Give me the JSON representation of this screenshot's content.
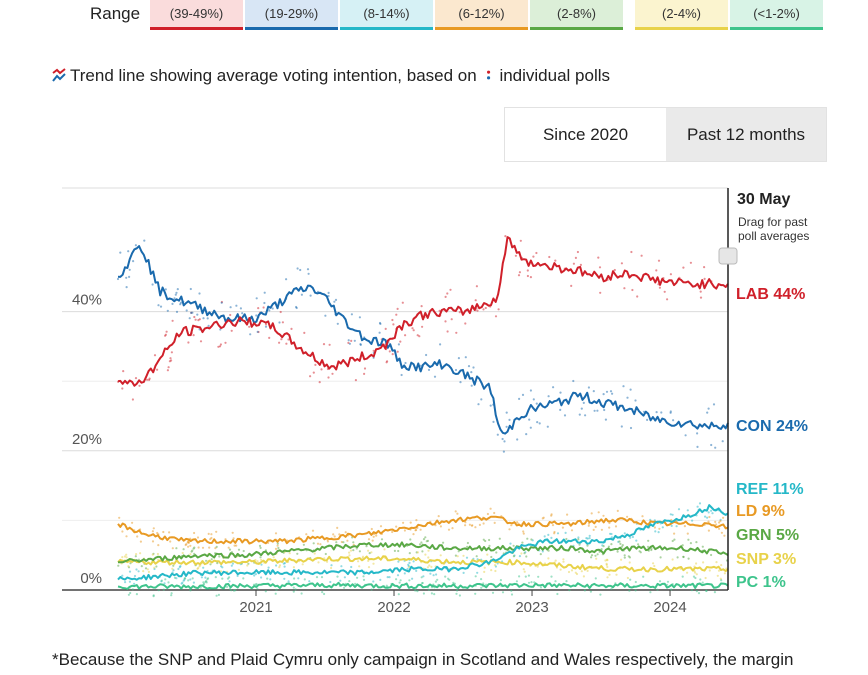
{
  "range_row": {
    "label": "Range",
    "cells": [
      {
        "text": "(39-49%)",
        "bg": "#fadcdc",
        "line": "#d0202a"
      },
      {
        "text": "(19-29%)",
        "bg": "#d8e6f5",
        "line": "#1a6aad"
      },
      {
        "text": "(8-14%)",
        "bg": "#d6f1f5",
        "line": "#25b8c8"
      },
      {
        "text": "(6-12%)",
        "bg": "#fbe8cf",
        "line": "#e89a24"
      },
      {
        "text": "(2-8%)",
        "bg": "#dcefd8",
        "line": "#5aa845"
      },
      {
        "text": "(2-4%)",
        "bg": "#fbf4cf",
        "line": "#e8d24a"
      },
      {
        "text": "(<1-2%)",
        "bg": "#d8f3e6",
        "line": "#3ec48c"
      }
    ]
  },
  "legend": {
    "text_before": "Trend line showing average voting intention, based on",
    "text_after": "individual polls",
    "trend_icon": "trend-line-icon",
    "poll_icon": "poll-dots-icon"
  },
  "toggle": {
    "since_label": "Since 2020",
    "past_label": "Past 12 months",
    "active": "past"
  },
  "chart_data": {
    "type": "line",
    "title": "Trend line showing average voting intention",
    "xlabel": "",
    "ylabel": "",
    "x_ticks": [
      2021,
      2022,
      2023,
      2024
    ],
    "x_range": [
      2020.0,
      2024.42
    ],
    "ylim": [
      0,
      50
    ],
    "y_ticks": [
      {
        "value": 0,
        "label": "0%"
      },
      {
        "value": 20,
        "label": "20%"
      },
      {
        "value": 40,
        "label": "40%"
      }
    ],
    "date_label": "30 May",
    "drag_hint": "Drag for past poll averages",
    "series": [
      {
        "name": "LAB",
        "label": "LAB 44%",
        "color": "#d0202a",
        "points": [
          [
            2020.0,
            30
          ],
          [
            2020.1,
            29.5
          ],
          [
            2020.2,
            30.5
          ],
          [
            2020.3,
            33
          ],
          [
            2020.45,
            37
          ],
          [
            2020.6,
            37.5
          ],
          [
            2020.8,
            38.5
          ],
          [
            2021.0,
            38.5
          ],
          [
            2021.15,
            37.5
          ],
          [
            2021.3,
            35
          ],
          [
            2021.45,
            33
          ],
          [
            2021.55,
            32
          ],
          [
            2021.7,
            33
          ],
          [
            2021.85,
            34
          ],
          [
            2021.95,
            35.5
          ],
          [
            2022.05,
            38
          ],
          [
            2022.2,
            39.5
          ],
          [
            2022.35,
            40
          ],
          [
            2022.5,
            40
          ],
          [
            2022.65,
            41
          ],
          [
            2022.75,
            42
          ],
          [
            2022.8,
            48
          ],
          [
            2022.83,
            51
          ],
          [
            2022.9,
            48
          ],
          [
            2023.0,
            47
          ],
          [
            2023.15,
            46.5
          ],
          [
            2023.3,
            46
          ],
          [
            2023.5,
            45
          ],
          [
            2023.7,
            45.5
          ],
          [
            2023.9,
            44.5
          ],
          [
            2024.1,
            44
          ],
          [
            2024.3,
            44
          ],
          [
            2024.42,
            44
          ]
        ]
      },
      {
        "name": "CON",
        "label": "CON 24%",
        "color": "#1a6aad",
        "points": [
          [
            2020.0,
            45
          ],
          [
            2020.08,
            47
          ],
          [
            2020.15,
            50
          ],
          [
            2020.2,
            48
          ],
          [
            2020.3,
            43
          ],
          [
            2020.4,
            42
          ],
          [
            2020.6,
            40.5
          ],
          [
            2020.8,
            39
          ],
          [
            2021.0,
            39
          ],
          [
            2021.15,
            41
          ],
          [
            2021.3,
            43
          ],
          [
            2021.4,
            43.5
          ],
          [
            2021.5,
            42
          ],
          [
            2021.65,
            38.5
          ],
          [
            2021.8,
            36
          ],
          [
            2021.95,
            35.5
          ],
          [
            2022.05,
            32.5
          ],
          [
            2022.2,
            32
          ],
          [
            2022.35,
            32.5
          ],
          [
            2022.5,
            31
          ],
          [
            2022.6,
            30
          ],
          [
            2022.7,
            29
          ],
          [
            2022.75,
            24
          ],
          [
            2022.8,
            22
          ],
          [
            2022.9,
            25
          ],
          [
            2023.0,
            26
          ],
          [
            2023.2,
            27
          ],
          [
            2023.35,
            28
          ],
          [
            2023.5,
            27
          ],
          [
            2023.7,
            26
          ],
          [
            2023.9,
            24.5
          ],
          [
            2024.1,
            24
          ],
          [
            2024.3,
            23.5
          ],
          [
            2024.42,
            24
          ]
        ]
      },
      {
        "name": "REF",
        "label": "REF 11%",
        "color": "#25b8c8",
        "points": [
          [
            2020.0,
            1.5
          ],
          [
            2020.3,
            2
          ],
          [
            2020.6,
            2.5
          ],
          [
            2020.9,
            2.5
          ],
          [
            2021.2,
            2.5
          ],
          [
            2021.5,
            2.5
          ],
          [
            2021.8,
            2.5
          ],
          [
            2022.1,
            3
          ],
          [
            2022.4,
            3
          ],
          [
            2022.7,
            4
          ],
          [
            2022.9,
            6
          ],
          [
            2023.1,
            7
          ],
          [
            2023.3,
            7
          ],
          [
            2023.5,
            7
          ],
          [
            2023.7,
            8
          ],
          [
            2023.9,
            9.5
          ],
          [
            2024.1,
            10.5
          ],
          [
            2024.3,
            12
          ],
          [
            2024.42,
            11
          ]
        ]
      },
      {
        "name": "LD",
        "label": "LD 9%",
        "color": "#e89a24",
        "points": [
          [
            2020.0,
            9.5
          ],
          [
            2020.2,
            8
          ],
          [
            2020.5,
            7
          ],
          [
            2020.9,
            7
          ],
          [
            2021.2,
            7
          ],
          [
            2021.5,
            7.5
          ],
          [
            2021.8,
            8
          ],
          [
            2022.1,
            9
          ],
          [
            2022.4,
            10
          ],
          [
            2022.7,
            10.5
          ],
          [
            2022.9,
            9.5
          ],
          [
            2023.1,
            9.5
          ],
          [
            2023.3,
            9.5
          ],
          [
            2023.5,
            10
          ],
          [
            2023.7,
            10
          ],
          [
            2023.9,
            9.5
          ],
          [
            2024.1,
            9.5
          ],
          [
            2024.3,
            9.5
          ],
          [
            2024.42,
            9
          ]
        ]
      },
      {
        "name": "GRN",
        "label": "GRN 5%",
        "color": "#5aa845",
        "points": [
          [
            2020.0,
            4
          ],
          [
            2020.3,
            4.5
          ],
          [
            2020.6,
            5
          ],
          [
            2020.9,
            5
          ],
          [
            2021.2,
            5.5
          ],
          [
            2021.5,
            6
          ],
          [
            2021.8,
            6.5
          ],
          [
            2022.1,
            6.5
          ],
          [
            2022.4,
            6
          ],
          [
            2022.7,
            6
          ],
          [
            2022.9,
            6
          ],
          [
            2023.1,
            6
          ],
          [
            2023.3,
            6
          ],
          [
            2023.5,
            5.5
          ],
          [
            2023.7,
            6
          ],
          [
            2023.9,
            6
          ],
          [
            2024.1,
            6
          ],
          [
            2024.3,
            5.5
          ],
          [
            2024.42,
            5
          ]
        ]
      },
      {
        "name": "SNP",
        "label": "SNP 3%",
        "color": "#e8d24a",
        "points": [
          [
            2020.0,
            4
          ],
          [
            2020.5,
            4
          ],
          [
            2021.0,
            4
          ],
          [
            2021.5,
            4.5
          ],
          [
            2022.0,
            4.5
          ],
          [
            2022.5,
            4
          ],
          [
            2022.9,
            4
          ],
          [
            2023.2,
            3.5
          ],
          [
            2023.6,
            3
          ],
          [
            2024.0,
            3
          ],
          [
            2024.42,
            3
          ]
        ]
      },
      {
        "name": "PC",
        "label": "PC 1%",
        "color": "#3ec48c",
        "points": [
          [
            2020.0,
            0.5
          ],
          [
            2020.5,
            0.5
          ],
          [
            2021.0,
            0.6
          ],
          [
            2021.5,
            0.7
          ],
          [
            2022.0,
            0.6
          ],
          [
            2022.5,
            0.6
          ],
          [
            2023.0,
            0.7
          ],
          [
            2023.5,
            0.6
          ],
          [
            2024.0,
            0.6
          ],
          [
            2024.42,
            0.6
          ]
        ]
      }
    ]
  },
  "footnote": "*Because the SNP and Plaid Cymru only campaign in Scotland and Wales respectively, the margin"
}
